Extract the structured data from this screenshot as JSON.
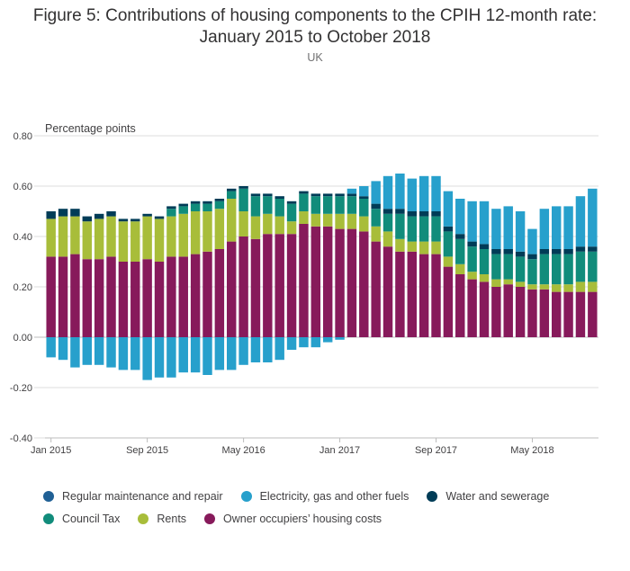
{
  "header": {
    "title_line1": "Figure 5: Contributions of housing components to the CPIH 12-month rate:",
    "title_line2": "January 2015 to October 2018",
    "subtitle": "UK"
  },
  "colors": {
    "regular_maintenance": "#206095",
    "electricity": "#27a0cc",
    "water": "#003c57",
    "council_tax": "#118c7b",
    "rents": "#a8bd3a",
    "owner_occupiers": "#871a5b",
    "grid": "#dddddd",
    "axis": "#bdbdbd"
  },
  "chart_data": {
    "type": "bar",
    "stacked": true,
    "title": "Figure 5: Contributions of housing components to the CPIH 12-month rate: January 2015 to October 2018",
    "subtitle": "UK",
    "ylabel": "Percentage points",
    "ylim": [
      -0.4,
      0.8
    ],
    "yticks": [
      "0.80",
      "0.60",
      "0.40",
      "0.20",
      "0.00",
      "-0.20",
      "-0.40"
    ],
    "ytick_values": [
      0.8,
      0.6,
      0.4,
      0.2,
      0.0,
      -0.2,
      -0.4
    ],
    "xtick_labels": [
      {
        "label": "Jan 2015",
        "index": 0
      },
      {
        "label": "Sep 2015",
        "index": 8
      },
      {
        "label": "May 2016",
        "index": 16
      },
      {
        "label": "Jan 2017",
        "index": 24
      },
      {
        "label": "Sep 2017",
        "index": 32
      },
      {
        "label": "May 2018",
        "index": 40
      }
    ],
    "grid": true,
    "legend_position": "bottom",
    "categories": [
      "Jan 2015",
      "Feb 2015",
      "Mar 2015",
      "Apr 2015",
      "May 2015",
      "Jun 2015",
      "Jul 2015",
      "Aug 2015",
      "Sep 2015",
      "Oct 2015",
      "Nov 2015",
      "Dec 2015",
      "Jan 2016",
      "Feb 2016",
      "Mar 2016",
      "Apr 2016",
      "May 2016",
      "Jun 2016",
      "Jul 2016",
      "Aug 2016",
      "Sep 2016",
      "Oct 2016",
      "Nov 2016",
      "Dec 2016",
      "Jan 2017",
      "Feb 2017",
      "Mar 2017",
      "Apr 2017",
      "May 2017",
      "Jun 2017",
      "Jul 2017",
      "Aug 2017",
      "Sep 2017",
      "Oct 2017",
      "Nov 2017",
      "Dec 2017",
      "Jan 2018",
      "Feb 2018",
      "Mar 2018",
      "Apr 2018",
      "May 2018",
      "Jun 2018",
      "Jul 2018",
      "Aug 2018",
      "Sep 2018",
      "Oct 2018"
    ],
    "series": [
      {
        "name": "Regular maintenance and repair",
        "color_key": "regular_maintenance",
        "values": [
          0,
          0,
          0,
          0,
          0,
          0,
          0,
          0,
          0,
          0,
          0,
          0,
          0,
          0,
          0,
          0,
          0,
          0,
          0,
          0,
          0,
          0,
          0,
          0,
          0,
          0,
          0,
          0,
          0,
          0,
          0,
          0,
          0,
          0,
          0,
          0,
          0,
          0,
          0,
          0,
          0,
          0,
          0,
          0,
          0,
          0
        ]
      },
      {
        "name": "Electricity, gas and other fuels",
        "color_key": "electricity",
        "values": [
          -0.08,
          -0.09,
          -0.12,
          -0.11,
          -0.11,
          -0.12,
          -0.13,
          -0.13,
          -0.17,
          -0.16,
          -0.16,
          -0.14,
          -0.14,
          -0.15,
          -0.13,
          -0.13,
          -0.11,
          -0.1,
          -0.1,
          -0.09,
          -0.05,
          -0.04,
          -0.04,
          -0.02,
          -0.01,
          0.02,
          0.04,
          0.09,
          0.13,
          0.14,
          0.13,
          0.14,
          0.14,
          0.14,
          0.14,
          0.16,
          0.17,
          0.16,
          0.17,
          0.16,
          0.1,
          0.16,
          0.17,
          0.17,
          0.2,
          0.23
        ]
      },
      {
        "name": "Water and sewerage",
        "color_key": "water",
        "values": [
          0.03,
          0.03,
          0.03,
          0.02,
          0.02,
          0.02,
          0.01,
          0.01,
          0.01,
          0.01,
          0.01,
          0.01,
          0.01,
          0.01,
          0.01,
          0.01,
          0.01,
          0.01,
          0.01,
          0.01,
          0.01,
          0.01,
          0.01,
          0.01,
          0.01,
          0.01,
          0.01,
          0.02,
          0.02,
          0.02,
          0.02,
          0.02,
          0.02,
          0.02,
          0.02,
          0.02,
          0.02,
          0.02,
          0.02,
          0.02,
          0.02,
          0.02,
          0.02,
          0.02,
          0.02,
          0.02
        ]
      },
      {
        "name": "Council Tax",
        "color_key": "council_tax",
        "values": [
          0,
          0,
          0,
          0,
          0,
          0,
          0,
          0,
          0,
          0,
          0.03,
          0.03,
          0.03,
          0.03,
          0.03,
          0.03,
          0.09,
          0.08,
          0.07,
          0.07,
          0.07,
          0.07,
          0.07,
          0.07,
          0.07,
          0.07,
          0.07,
          0.07,
          0.07,
          0.1,
          0.1,
          0.1,
          0.1,
          0.1,
          0.1,
          0.1,
          0.1,
          0.1,
          0.1,
          0.1,
          0.1,
          0.12,
          0.12,
          0.12,
          0.12,
          0.12
        ]
      },
      {
        "name": "Rents",
        "color_key": "rents",
        "values": [
          0.15,
          0.16,
          0.15,
          0.15,
          0.16,
          0.16,
          0.16,
          0.16,
          0.17,
          0.17,
          0.16,
          0.17,
          0.17,
          0.16,
          0.16,
          0.17,
          0.1,
          0.09,
          0.08,
          0.07,
          0.05,
          0.05,
          0.05,
          0.05,
          0.06,
          0.06,
          0.06,
          0.06,
          0.06,
          0.05,
          0.04,
          0.05,
          0.05,
          0.04,
          0.04,
          0.03,
          0.03,
          0.03,
          0.02,
          0.02,
          0.02,
          0.02,
          0.03,
          0.03,
          0.04,
          0.04
        ]
      },
      {
        "name": "Owner occupiers’ housing costs",
        "color_key": "owner_occupiers",
        "values": [
          0.32,
          0.32,
          0.33,
          0.31,
          0.31,
          0.32,
          0.3,
          0.3,
          0.31,
          0.3,
          0.32,
          0.32,
          0.33,
          0.34,
          0.35,
          0.38,
          0.4,
          0.39,
          0.41,
          0.41,
          0.41,
          0.45,
          0.44,
          0.44,
          0.43,
          0.43,
          0.42,
          0.38,
          0.36,
          0.34,
          0.34,
          0.33,
          0.33,
          0.28,
          0.25,
          0.23,
          0.22,
          0.2,
          0.21,
          0.2,
          0.19,
          0.19,
          0.18,
          0.18,
          0.18,
          0.18
        ]
      }
    ],
    "stack_order_positive": [
      "owner_occupiers",
      "rents",
      "council_tax",
      "water",
      "electricity",
      "regular_maintenance"
    ]
  },
  "legend": {
    "row1": [
      {
        "label": "Regular maintenance and repair",
        "color_key": "regular_maintenance"
      },
      {
        "label": "Electricity, gas and other fuels",
        "color_key": "electricity"
      },
      {
        "label": "Water and sewerage",
        "color_key": "water"
      }
    ],
    "row2": [
      {
        "label": "Council Tax",
        "color_key": "council_tax"
      },
      {
        "label": "Rents",
        "color_key": "rents"
      },
      {
        "label": "Owner occupiers’ housing costs",
        "color_key": "owner_occupiers"
      }
    ]
  }
}
